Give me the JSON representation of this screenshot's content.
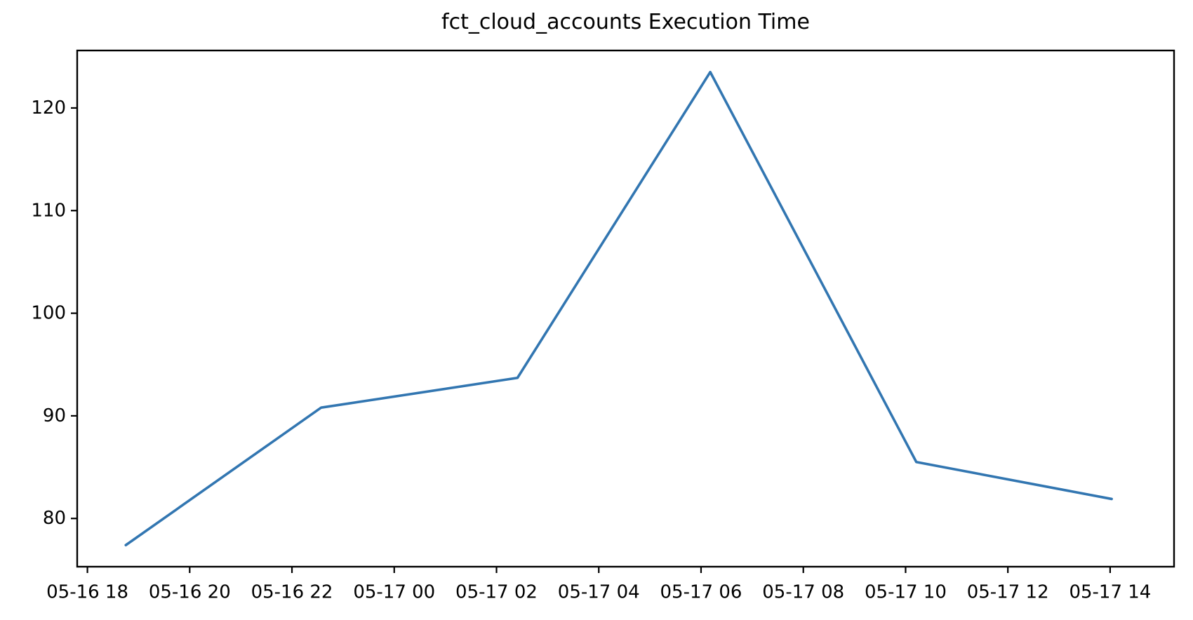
{
  "chart_data": {
    "type": "line",
    "title": "fct_cloud_accounts Execution Time",
    "xlabel": "",
    "ylabel": "",
    "grid": false,
    "legend_position": "none",
    "series": [
      {
        "name": "execution_time",
        "x_labels": [
          "05-16 18:45",
          "05-16 22:34",
          "05-17 02:25",
          "05-17 06:11",
          "05-17 10:12",
          "05-17 14:02"
        ],
        "x_hours": [
          0.75,
          4.57,
          8.41,
          12.18,
          16.21,
          20.03
        ],
        "values": [
          77.4,
          90.8,
          93.7,
          123.5,
          85.5,
          81.9
        ]
      }
    ],
    "x_axis": {
      "tick_labels": [
        "05-16 18",
        "05-16 20",
        "05-16 22",
        "05-17 00",
        "05-17 02",
        "05-17 04",
        "05-17 06",
        "05-17 08",
        "05-17 10",
        "05-17 12",
        "05-17 14"
      ],
      "tick_hours": [
        0,
        2,
        4,
        6,
        8,
        10,
        12,
        14,
        16,
        18,
        20
      ],
      "range_hours": [
        -0.2,
        21.25
      ]
    },
    "y_axis": {
      "ticks": [
        80,
        90,
        100,
        110,
        120
      ],
      "range": [
        75.3,
        125.6
      ]
    },
    "style": {
      "line_color": "#3276b1",
      "axis_color": "#000000",
      "text_color": "#000000",
      "background": "#ffffff"
    }
  }
}
